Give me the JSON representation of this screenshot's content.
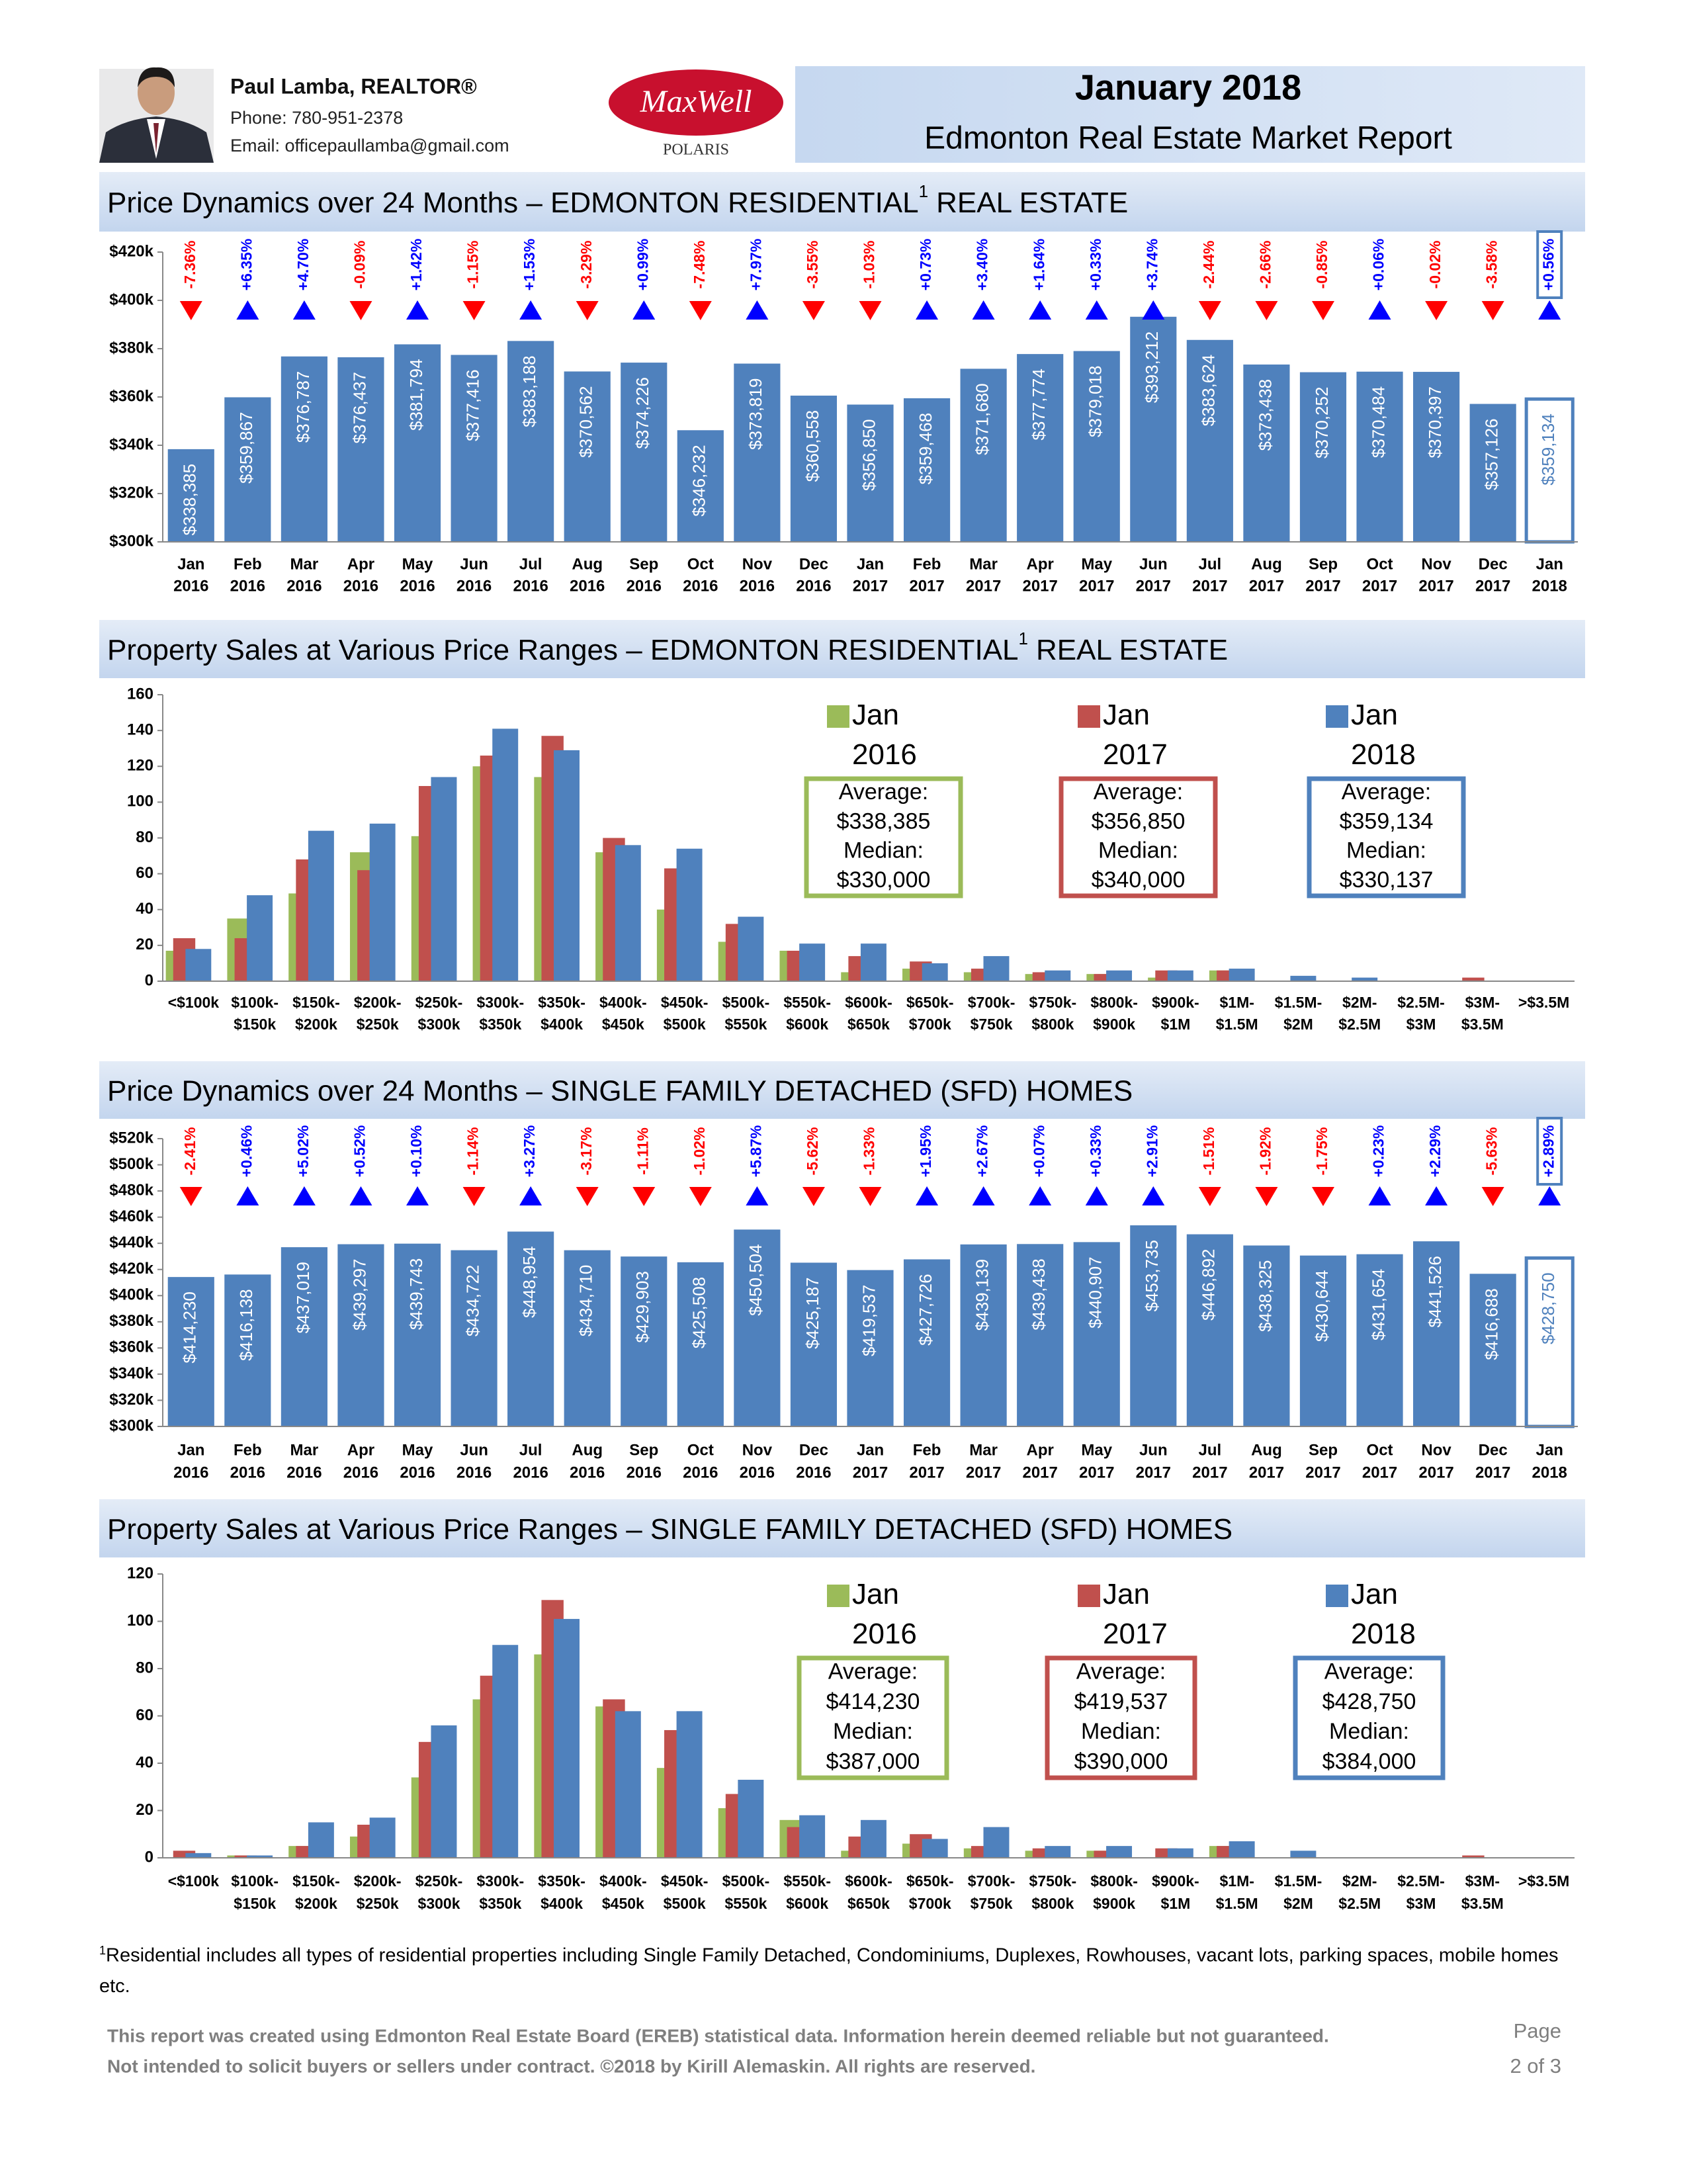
{
  "header": {
    "name": "Paul Lamba, REALTOR®",
    "phone": "Phone: 780-951-2378",
    "email": "Email: officepaullamba@gmail.com",
    "logo": "MaxWell",
    "logo_sub": "POLARIS",
    "date": "January 2018",
    "report": "Edmonton Real Estate Market Report"
  },
  "chart_data": [
    {
      "type": "bar",
      "title": "Price Dynamics over 24 Months – EDMONTON RESIDENTIAL",
      "title_note": "1",
      "title_end": "REAL ESTATE",
      "categories": [
        [
          "Jan",
          "2016"
        ],
        [
          "Feb",
          "2016"
        ],
        [
          "Mar",
          "2016"
        ],
        [
          "Apr",
          "2016"
        ],
        [
          "May",
          "2016"
        ],
        [
          "Jun",
          "2016"
        ],
        [
          "Jul",
          "2016"
        ],
        [
          "Aug",
          "2016"
        ],
        [
          "Sep",
          "2016"
        ],
        [
          "Oct",
          "2016"
        ],
        [
          "Nov",
          "2016"
        ],
        [
          "Dec",
          "2016"
        ],
        [
          "Jan",
          "2017"
        ],
        [
          "Feb",
          "2017"
        ],
        [
          "Mar",
          "2017"
        ],
        [
          "Apr",
          "2017"
        ],
        [
          "May",
          "2017"
        ],
        [
          "Jun",
          "2017"
        ],
        [
          "Jul",
          "2017"
        ],
        [
          "Aug",
          "2017"
        ],
        [
          "Sep",
          "2017"
        ],
        [
          "Oct",
          "2017"
        ],
        [
          "Nov",
          "2017"
        ],
        [
          "Dec",
          "2017"
        ],
        [
          "Jan",
          "2018"
        ]
      ],
      "values": [
        338385,
        359867,
        376787,
        376437,
        381794,
        377416,
        383188,
        370562,
        374226,
        346232,
        373819,
        360558,
        356850,
        359468,
        371680,
        377774,
        379018,
        393212,
        383624,
        373438,
        370252,
        370484,
        370397,
        357126,
        359134
      ],
      "value_labels": [
        "$338,385",
        "$359,867",
        "$376,787",
        "$376,437",
        "$381,794",
        "$377,416",
        "$383,188",
        "$370,562",
        "$374,226",
        "$346,232",
        "$373,819",
        "$360,558",
        "$356,850",
        "$359,468",
        "$371,680",
        "$377,774",
        "$379,018",
        "$393,212",
        "$383,624",
        "$373,438",
        "$370,252",
        "$370,484",
        "$370,397",
        "$357,126",
        "$359,134"
      ],
      "changes": [
        -7.36,
        6.35,
        4.7,
        -0.09,
        1.42,
        -1.15,
        1.53,
        -3.29,
        0.99,
        -7.48,
        7.97,
        -3.55,
        -1.03,
        0.73,
        3.4,
        1.64,
        0.33,
        3.74,
        -2.44,
        -2.66,
        -0.85,
        0.06,
        -0.02,
        -3.58,
        0.56
      ],
      "change_labels": [
        "-7.36%",
        "+6.35%",
        "+4.70%",
        "-0.09%",
        "+1.42%",
        "-1.15%",
        "+1.53%",
        "-3.29%",
        "+0.99%",
        "-7.48%",
        "+7.97%",
        "-3.55%",
        "-1.03%",
        "+0.73%",
        "+3.40%",
        "+1.64%",
        "+0.33%",
        "+3.74%",
        "-2.44%",
        "-2.66%",
        "-0.85%",
        "+0.06%",
        "-0.02%",
        "-3.58%",
        "+0.56%"
      ],
      "color": "#4f81bd",
      "highlight_color": "#ffffff",
      "up_color": "#0000ff",
      "down_color": "#ff0000",
      "ylim": [
        300000,
        420000
      ],
      "yticks": [
        {
          "value": 300000,
          "label": "$300k"
        },
        {
          "value": 320000,
          "label": "$320k"
        },
        {
          "value": 340000,
          "label": "$340k"
        },
        {
          "value": 360000,
          "label": "$360k"
        },
        {
          "value": 380000,
          "label": "$380k"
        },
        {
          "value": 400000,
          "label": "$400k"
        },
        {
          "value": 420000,
          "label": "$420k"
        }
      ]
    },
    {
      "type": "grouped_bar",
      "title": "Property Sales at Various Price Ranges – EDMONTON RESIDENTIAL",
      "title_note": "1",
      "title_end": "REAL ESTATE",
      "categories": [
        [
          "<$100k"
        ],
        [
          "$100k-",
          "$150k"
        ],
        [
          "$150k-",
          "$200k"
        ],
        [
          "$200k-",
          "$250k"
        ],
        [
          "$250k-",
          "$300k"
        ],
        [
          "$300k-",
          "$350k"
        ],
        [
          "$350k-",
          "$400k"
        ],
        [
          "$400k-",
          "$450k"
        ],
        [
          "$450k-",
          "$500k"
        ],
        [
          "$500k-",
          "$550k"
        ],
        [
          "$550k-",
          "$600k"
        ],
        [
          "$600k-",
          "$650k"
        ],
        [
          "$650k-",
          "$700k"
        ],
        [
          "$700k-",
          "$750k"
        ],
        [
          "$750k-",
          "$800k"
        ],
        [
          "$800k-",
          "$900k"
        ],
        [
          "$900k-",
          "$1M"
        ],
        [
          "$1M-",
          "$1.5M"
        ],
        [
          "$1.5M-",
          "$2M"
        ],
        [
          "$2M-",
          "$2.5M"
        ],
        [
          "$2.5M-",
          "$3M"
        ],
        [
          "$3M-",
          "$3.5M"
        ],
        [
          ">$3.5M"
        ]
      ],
      "series": [
        {
          "name": "Jan 2016",
          "color": "#9bbb59",
          "values": [
            17,
            35,
            49,
            72,
            81,
            120,
            114,
            72,
            40,
            22,
            17,
            5,
            7,
            5,
            4,
            4,
            2,
            6,
            0,
            0,
            0,
            0,
            0
          ],
          "average": "$338,385",
          "median": "$330,000"
        },
        {
          "name": "Jan 2017",
          "color": "#c0504d",
          "values": [
            24,
            24,
            68,
            62,
            109,
            126,
            137,
            80,
            63,
            32,
            17,
            14,
            11,
            7,
            5,
            4,
            6,
            6,
            0,
            0,
            0,
            2,
            0
          ],
          "average": "$356,850",
          "median": "$340,000"
        },
        {
          "name": "Jan 2018",
          "color": "#4f81bd",
          "values": [
            18,
            48,
            84,
            88,
            114,
            141,
            129,
            76,
            74,
            36,
            21,
            21,
            10,
            14,
            6,
            6,
            6,
            7,
            3,
            2,
            0,
            0,
            0
          ],
          "average": "$359,134",
          "median": "$330,137"
        }
      ],
      "average_title": "Average:",
      "median_title": "Median:",
      "ylim": [
        0,
        160
      ],
      "yticks": [
        0,
        20,
        40,
        60,
        80,
        100,
        120,
        140,
        160
      ]
    },
    {
      "type": "bar",
      "title": "Price Dynamics over 24 Months – SINGLE FAMILY DETACHED (SFD) HOMES",
      "categories": [
        [
          "Jan",
          "2016"
        ],
        [
          "Feb",
          "2016"
        ],
        [
          "Mar",
          "2016"
        ],
        [
          "Apr",
          "2016"
        ],
        [
          "May",
          "2016"
        ],
        [
          "Jun",
          "2016"
        ],
        [
          "Jul",
          "2016"
        ],
        [
          "Aug",
          "2016"
        ],
        [
          "Sep",
          "2016"
        ],
        [
          "Oct",
          "2016"
        ],
        [
          "Nov",
          "2016"
        ],
        [
          "Dec",
          "2016"
        ],
        [
          "Jan",
          "2017"
        ],
        [
          "Feb",
          "2017"
        ],
        [
          "Mar",
          "2017"
        ],
        [
          "Apr",
          "2017"
        ],
        [
          "May",
          "2017"
        ],
        [
          "Jun",
          "2017"
        ],
        [
          "Jul",
          "2017"
        ],
        [
          "Aug",
          "2017"
        ],
        [
          "Sep",
          "2017"
        ],
        [
          "Oct",
          "2017"
        ],
        [
          "Nov",
          "2017"
        ],
        [
          "Dec",
          "2017"
        ],
        [
          "Jan",
          "2018"
        ]
      ],
      "values": [
        414230,
        416138,
        437019,
        439297,
        439743,
        434722,
        448954,
        434710,
        429903,
        425508,
        450504,
        425187,
        419537,
        427726,
        439139,
        439438,
        440907,
        453735,
        446892,
        438325,
        430644,
        431654,
        441526,
        416688,
        428750
      ],
      "value_labels": [
        "$414,230",
        "$416,138",
        "$437,019",
        "$439,297",
        "$439,743",
        "$434,722",
        "$448,954",
        "$434,710",
        "$429,903",
        "$425,508",
        "$450,504",
        "$425,187",
        "$419,537",
        "$427,726",
        "$439,139",
        "$439,438",
        "$440,907",
        "$453,735",
        "$446,892",
        "$438,325",
        "$430,644",
        "$431,654",
        "$441,526",
        "$416,688",
        "$428,750"
      ],
      "changes": [
        -2.41,
        0.46,
        5.02,
        0.52,
        0.1,
        -1.14,
        3.27,
        -3.17,
        -1.11,
        -1.02,
        5.87,
        -5.62,
        -1.33,
        1.95,
        2.67,
        0.07,
        0.33,
        2.91,
        -1.51,
        -1.92,
        -1.75,
        0.23,
        2.29,
        -5.63,
        2.89
      ],
      "change_labels": [
        "-2.41%",
        "+0.46%",
        "+5.02%",
        "+0.52%",
        "+0.10%",
        "-1.14%",
        "+3.27%",
        "-3.17%",
        "-1.11%",
        "-1.02%",
        "+5.87%",
        "-5.62%",
        "-1.33%",
        "+1.95%",
        "+2.67%",
        "+0.07%",
        "+0.33%",
        "+2.91%",
        "-1.51%",
        "-1.92%",
        "-1.75%",
        "+0.23%",
        "+2.29%",
        "-5.63%",
        "+2.89%"
      ],
      "color": "#4f81bd",
      "highlight_color": "#ffffff",
      "up_color": "#0000ff",
      "down_color": "#ff0000",
      "ylim": [
        300000,
        520000
      ],
      "yticks": [
        {
          "value": 300000,
          "label": "$300k"
        },
        {
          "value": 320000,
          "label": "$320k"
        },
        {
          "value": 340000,
          "label": "$340k"
        },
        {
          "value": 360000,
          "label": "$360k"
        },
        {
          "value": 380000,
          "label": "$380k"
        },
        {
          "value": 400000,
          "label": "$400k"
        },
        {
          "value": 420000,
          "label": "$420k"
        },
        {
          "value": 440000,
          "label": "$440k"
        },
        {
          "value": 460000,
          "label": "$460k"
        },
        {
          "value": 480000,
          "label": "$480k"
        },
        {
          "value": 500000,
          "label": "$500k"
        },
        {
          "value": 520000,
          "label": "$520k"
        }
      ]
    },
    {
      "type": "grouped_bar",
      "title": "Property Sales at Various Price Ranges – SINGLE FAMILY DETACHED (SFD) HOMES",
      "categories": [
        [
          "<$100k"
        ],
        [
          "$100k-",
          "$150k"
        ],
        [
          "$150k-",
          "$200k"
        ],
        [
          "$200k-",
          "$250k"
        ],
        [
          "$250k-",
          "$300k"
        ],
        [
          "$300k-",
          "$350k"
        ],
        [
          "$350k-",
          "$400k"
        ],
        [
          "$400k-",
          "$450k"
        ],
        [
          "$450k-",
          "$500k"
        ],
        [
          "$500k-",
          "$550k"
        ],
        [
          "$550k-",
          "$600k"
        ],
        [
          "$600k-",
          "$650k"
        ],
        [
          "$650k-",
          "$700k"
        ],
        [
          "$700k-",
          "$750k"
        ],
        [
          "$750k-",
          "$800k"
        ],
        [
          "$800k-",
          "$900k"
        ],
        [
          "$900k-",
          "$1M"
        ],
        [
          "$1M-",
          "$1.5M"
        ],
        [
          "$1.5M-",
          "$2M"
        ],
        [
          "$2M-",
          "$2.5M"
        ],
        [
          "$2.5M-",
          "$3M"
        ],
        [
          "$3M-",
          "$3.5M"
        ],
        [
          ">$3.5M"
        ]
      ],
      "series": [
        {
          "name": "Jan 2016",
          "color": "#9bbb59",
          "values": [
            0,
            1,
            5,
            9,
            34,
            67,
            86,
            64,
            38,
            21,
            16,
            3,
            6,
            4,
            3,
            3,
            0,
            5,
            0,
            0,
            0,
            0,
            0
          ],
          "average": "$414,230",
          "median": "$387,000"
        },
        {
          "name": "Jan 2017",
          "color": "#c0504d",
          "values": [
            3,
            1,
            5,
            14,
            49,
            77,
            109,
            67,
            54,
            27,
            13,
            9,
            10,
            5,
            4,
            3,
            4,
            5,
            0,
            0,
            0,
            1,
            0
          ],
          "average": "$419,537",
          "median": "$390,000"
        },
        {
          "name": "Jan 2018",
          "color": "#4f81bd",
          "values": [
            2,
            1,
            15,
            17,
            56,
            90,
            101,
            62,
            62,
            33,
            18,
            16,
            8,
            13,
            5,
            5,
            4,
            7,
            3,
            0,
            0,
            0,
            0
          ],
          "average": "$428,750",
          "median": "$384,000"
        }
      ],
      "average_title": "Average:",
      "median_title": "Median:",
      "ylim": [
        0,
        120
      ],
      "yticks": [
        0,
        20,
        40,
        60,
        80,
        100,
        120
      ]
    }
  ],
  "footnote": {
    "mark": "1",
    "text": "Residential includes all types of residential properties including Single Family Detached, Condominiums, Duplexes, Rowhouses, vacant lots, parking spaces, mobile homes etc."
  },
  "footer": {
    "line1": "This report was created using Edmonton Real Estate Board (EREB) statistical data. Information herein deemed reliable but not guaranteed.",
    "line2": "Not intended to solicit buyers or sellers under contract. ©2018 by Kirill Alemaskin. All rights are reserved.",
    "page": "Page",
    "page_number": "2 of 3"
  }
}
